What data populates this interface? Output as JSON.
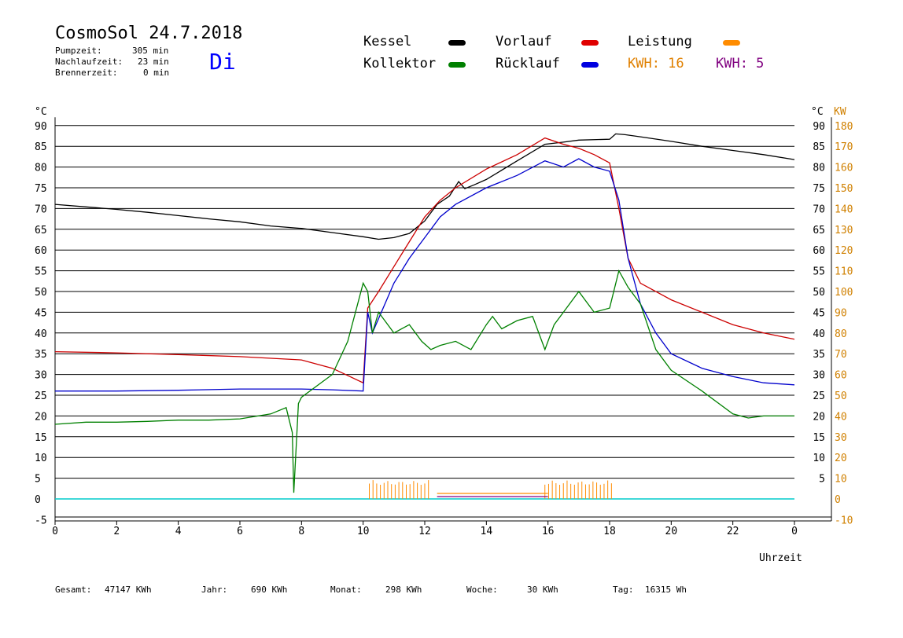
{
  "header": {
    "title": "CosmoSol 24.7.2018",
    "day": "Di",
    "stats": [
      {
        "label": "Pumpzeit:",
        "value": "305 min"
      },
      {
        "label": "Nachlaufzeit:",
        "value": "23 min"
      },
      {
        "label": "Brennerzeit:",
        "value": "0 min"
      }
    ]
  },
  "legend": {
    "kessel": "Kessel",
    "kollektor": "Kollektor",
    "vorlauf": "Vorlauf",
    "ruecklauf": "Rücklauf",
    "leistung": "Leistung",
    "kwh1": "KWH: 16",
    "kwh2": "KWH: 5"
  },
  "footer": {
    "gesamt_label": "Gesamt:",
    "gesamt_value": "47147 KWh",
    "jahr_label": "Jahr:",
    "jahr_value": "690 KWh",
    "monat_label": "Monat:",
    "monat_value": "298 KWh",
    "woche_label": "Woche:",
    "woche_value": "30 KWh",
    "tag_label": "Tag:",
    "tag_value": "16315 Wh"
  },
  "colors": {
    "kessel": "#000000",
    "kollektor": "#008000",
    "vorlauf": "#cc0000",
    "ruecklauf": "#0000cc",
    "leistung": "#ff8c00",
    "kwh2": "#800080",
    "cyan": "#00cccc",
    "axis_right": "#d08000"
  },
  "chart_data": {
    "type": "line",
    "xlabel": "Uhrzeit",
    "ylabel": "°C",
    "ylabel_right": "KW",
    "x_ticks": [
      "0",
      "2",
      "4",
      "6",
      "8",
      "10",
      "12",
      "14",
      "16",
      "18",
      "20",
      "22",
      "0"
    ],
    "y_ticks": [
      "-5",
      "0",
      "5",
      "10",
      "15",
      "20",
      "25",
      "30",
      "35",
      "40",
      "45",
      "50",
      "55",
      "60",
      "65",
      "70",
      "75",
      "80",
      "85",
      "90"
    ],
    "y2_ticks": [
      "-10",
      "0",
      "10",
      "20",
      "30",
      "40",
      "50",
      "60",
      "70",
      "80",
      "90",
      "100",
      "110",
      "120",
      "130",
      "140",
      "150",
      "160",
      "170",
      "180"
    ],
    "y2_right_ticks": [
      "5",
      "10",
      "15",
      "20",
      "25",
      "30",
      "35",
      "40",
      "45",
      "50",
      "55",
      "60",
      "65",
      "70",
      "75",
      "80",
      "85",
      "90"
    ],
    "xlim": [
      0,
      24
    ],
    "ylim": [
      -5,
      92
    ],
    "series": [
      {
        "name": "Kessel",
        "color": "#000000",
        "x": [
          0,
          1,
          2,
          3,
          4,
          5,
          6,
          7,
          8,
          9,
          10,
          10.5,
          11,
          11.5,
          12,
          12.4,
          12.8,
          13.1,
          13.3,
          13.6,
          14,
          15,
          15.9,
          16.5,
          17,
          18,
          18.2,
          18.5,
          19,
          20,
          21,
          22,
          23,
          24
        ],
        "y": [
          71,
          70.4,
          69.8,
          69.1,
          68.3,
          67.5,
          66.8,
          65.8,
          65.2,
          64.2,
          63.2,
          62.6,
          63,
          64,
          67,
          71,
          73,
          76.5,
          74.8,
          75.7,
          77,
          81.5,
          85.5,
          86,
          86.5,
          86.7,
          88,
          87.8,
          87.3,
          86.2,
          85,
          84,
          83,
          81.8
        ]
      },
      {
        "name": "Vorlauf",
        "color": "#cc0000",
        "x": [
          0,
          2,
          4,
          6,
          8,
          9,
          10,
          10.15,
          10.5,
          11,
          11.5,
          12,
          12.5,
          13,
          14,
          15,
          15.9,
          16.5,
          17,
          17.5,
          18,
          18.3,
          18.6,
          19,
          20,
          21,
          22,
          23,
          24
        ],
        "y": [
          35.5,
          35.2,
          34.8,
          34.3,
          33.5,
          31.5,
          28,
          46,
          50,
          56,
          62,
          68,
          72,
          75,
          79.5,
          83,
          87,
          85.5,
          84.5,
          83,
          81,
          70,
          58,
          52,
          48,
          45,
          42,
          40,
          38.5
        ]
      },
      {
        "name": "Rücklauf",
        "color": "#0000cc",
        "x": [
          0,
          2,
          4,
          6,
          8,
          9,
          10,
          10.15,
          10.3,
          11,
          11.5,
          12,
          12.5,
          13,
          14,
          15,
          15.9,
          16.5,
          17,
          17.5,
          18,
          18.3,
          18.6,
          19,
          19.5,
          20,
          21,
          22,
          23,
          24
        ],
        "y": [
          26,
          26,
          26.2,
          26.5,
          26.5,
          26.3,
          26,
          45,
          40,
          52,
          58,
          63,
          68,
          71,
          75,
          78,
          81.5,
          80,
          82,
          80,
          79,
          72,
          58,
          47,
          40,
          35,
          31.5,
          29.5,
          28,
          27.5
        ]
      },
      {
        "name": "Kollektor",
        "color": "#008000",
        "x": [
          0,
          1,
          2,
          3,
          4,
          5,
          6,
          7,
          7.5,
          7.7,
          7.75,
          7.9,
          8,
          9,
          9.5,
          10,
          10.15,
          10.3,
          10.5,
          11,
          11.5,
          11.9,
          12.2,
          12.5,
          13,
          13.5,
          14,
          14.2,
          14.5,
          15,
          15.5,
          15.9,
          16.2,
          16.5,
          17,
          17.5,
          18,
          18.3,
          18.6,
          19,
          19.5,
          20,
          21,
          22,
          22.5,
          23,
          24
        ],
        "y": [
          18,
          18.5,
          18.5,
          18.7,
          19,
          19,
          19.3,
          20.5,
          22,
          16,
          1.5,
          23,
          24.5,
          30,
          38,
          52,
          50,
          40,
          45,
          40,
          42,
          38,
          36,
          37,
          38,
          36,
          42,
          44,
          41,
          43,
          44,
          36,
          42,
          45,
          50,
          45,
          46,
          55,
          51,
          47,
          36,
          31,
          26,
          20.5,
          19.5,
          20,
          20
        ]
      }
    ],
    "bars": {
      "name": "Leistung",
      "color": "#ff8c00",
      "unit": "KW"
    },
    "kwh_values": {
      "kwh_orange": 16,
      "kwh_purple": 5
    }
  }
}
